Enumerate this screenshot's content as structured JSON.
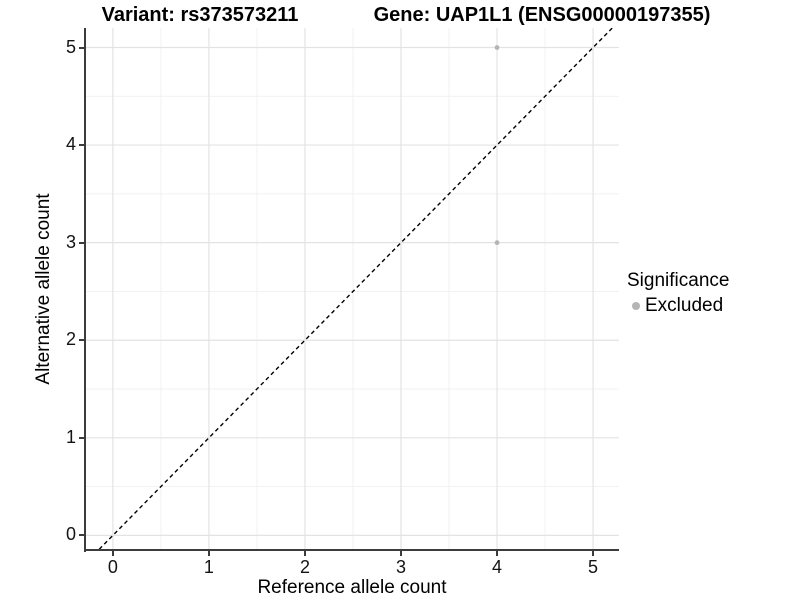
{
  "chart_data": {
    "type": "scatter",
    "titles": {
      "left": "Variant: rs373573211",
      "right": "Gene: UAP1L1 (ENSG00000197355)"
    },
    "xlabel": "Reference allele count",
    "ylabel": "Alternative allele count",
    "xlim": [
      -0.28,
      5.27
    ],
    "ylim": [
      -0.15,
      5.2
    ],
    "x_ticks": [
      0,
      1,
      2,
      3,
      4,
      5
    ],
    "y_ticks": [
      0,
      1,
      2,
      3,
      4,
      5
    ],
    "x_minor_ticks": [
      0.5,
      1.5,
      2.5,
      3.5,
      4.5
    ],
    "y_minor_ticks": [
      0.5,
      1.5,
      2.5,
      3.5,
      4.5
    ],
    "grid": {
      "major_color": "#e3e3e3",
      "minor_color": "#f0f0f0",
      "background": "#ffffff"
    },
    "identity_line": {
      "equation": "y = x",
      "style": "dashed",
      "color": "#000000"
    },
    "series": [
      {
        "name": "Excluded",
        "color": "#b5b5b5",
        "points": [
          {
            "x": 4,
            "y": 5
          },
          {
            "x": 4,
            "y": 3
          }
        ]
      }
    ],
    "legend": {
      "title": "Significance",
      "position": "right",
      "entries": [
        {
          "label": "Excluded",
          "color": "#b5b5b5"
        }
      ]
    }
  }
}
